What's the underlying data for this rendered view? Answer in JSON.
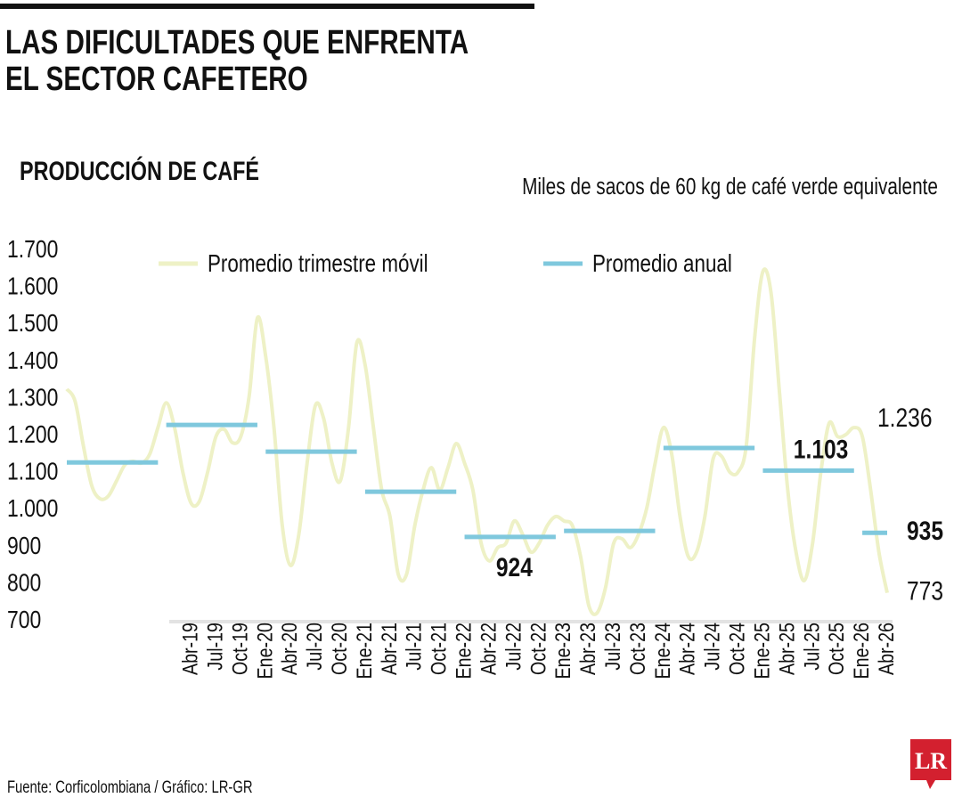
{
  "chart_data": {
    "type": "line",
    "title": [
      "LAS DIFICULTADES QUE ENFRENTA",
      "EL SECTOR CAFETERO"
    ],
    "subtitle": "PRODUCCIÓN DE CAFÉ",
    "y_label": "Miles de sacos de 60 kg de café verde equivalente",
    "source": "Fuente: Corficolombiana / Gráfico: LR-GR",
    "logo": "LR",
    "legend": "top",
    "annotations": [
      "1.236"
    ],
    "ylim": [
      700,
      1700
    ],
    "yticks": [
      {
        "value": 1700,
        "label": "1.700"
      },
      {
        "value": 1600,
        "label": "1.600"
      },
      {
        "value": 1500,
        "label": "1.500"
      },
      {
        "value": 1400,
        "label": "1.400"
      },
      {
        "value": 1300,
        "label": "1.300"
      },
      {
        "value": 1200,
        "label": "1.200"
      },
      {
        "value": 1100,
        "label": "1.100"
      },
      {
        "value": 1000,
        "label": "1.000"
      },
      900,
      800,
      700
    ],
    "categories": [
      null,
      null,
      null,
      null,
      null,
      null,
      null,
      null,
      null,
      null,
      null,
      null,
      null,
      null,
      null,
      "Abr-19",
      null,
      null,
      "Jul-19",
      null,
      null,
      "Oct-19",
      null,
      null,
      "Ene-20",
      null,
      null,
      "Abr-20",
      null,
      null,
      "Jul-20",
      null,
      null,
      "Oct-20",
      null,
      null,
      "Ene-21",
      null,
      null,
      "Abr-21",
      null,
      null,
      "Jul-21",
      null,
      null,
      "Oct-21",
      null,
      null,
      "Ene-22",
      null,
      null,
      "Abr-22",
      null,
      null,
      "Jul-22",
      null,
      null,
      "Oct-22",
      null,
      null,
      "Ene-23",
      null,
      null,
      "Abr-23",
      null,
      null,
      "Jul-23",
      null,
      null,
      "Oct-23",
      null,
      null,
      "Ene-24",
      null,
      null,
      "Abr-24",
      null,
      null,
      "Jul-24",
      null,
      null,
      "Oct-24",
      null,
      null,
      "Ene-25",
      null,
      null,
      "Abr-25",
      null,
      null,
      "Jul-25",
      null,
      null,
      "Oct-25",
      null,
      null,
      "Ene-26",
      null,
      null,
      "Abr-26"
    ],
    "series": [
      {
        "name": "Promedio trimestre móvil",
        "color": "#eef1c6",
        "style": "smooth",
        "values": [
          1323,
          1290,
          1170,
          1063,
          1027,
          1034,
          1075,
          1118,
          1128,
          1123,
          1147,
          1219,
          1286,
          1219,
          1099,
          1015,
          1020,
          1099,
          1195,
          1214,
          1178,
          1195,
          1303,
          1515,
          1411,
          1219,
          955,
          847,
          931,
          1123,
          1279,
          1243,
          1123,
          1075,
          1219,
          1448,
          1388,
          1219,
          1051,
          979,
          823,
          823,
          955,
          1051,
          1111,
          1051,
          1111,
          1176,
          1123,
          1051,
          907,
          859,
          895,
          907,
          967,
          931,
          883,
          907,
          955,
          979,
          967,
          955,
          871,
          738,
          719,
          786,
          907,
          919,
          895,
          931,
          1003,
          1123,
          1219,
          1147,
          979,
          871,
          883,
          979,
          1135,
          1142,
          1099,
          1099,
          1171,
          1460,
          1640,
          1580,
          1315,
          1051,
          883,
          806,
          907,
          1099,
          1231,
          1195,
          1200,
          1219,
          1195,
          1051,
          883,
          773
        ],
        "value_labels": [
          null,
          null,
          null,
          null,
          null,
          null,
          null,
          null,
          null,
          null,
          null,
          null,
          null,
          null,
          null,
          null,
          null,
          null,
          null,
          null,
          null,
          null,
          null,
          null,
          null,
          null,
          null,
          null,
          null,
          null,
          null,
          null,
          null,
          null,
          null,
          null,
          null,
          null,
          null,
          null,
          null,
          null,
          null,
          null,
          null,
          null,
          null,
          null,
          null,
          null,
          null,
          null,
          null,
          null,
          null,
          null,
          null,
          null,
          null,
          null,
          null,
          null,
          null,
          null,
          null,
          null,
          null,
          null,
          null,
          null,
          null,
          null,
          null,
          null,
          null,
          null,
          null,
          null,
          null,
          null,
          null,
          null,
          null,
          null,
          null,
          null,
          null,
          null,
          null,
          null,
          null,
          null,
          null,
          null,
          null,
          null,
          null,
          null,
          null,
          "773"
        ]
      },
      {
        "name": "Promedio anual",
        "color": "#7fc8dd",
        "style": "step",
        "values": [
          1125,
          1125,
          1125,
          1125,
          1125,
          1125,
          1125,
          1125,
          1125,
          1125,
          1125,
          1125,
          1226,
          1226,
          1226,
          1226,
          1226,
          1226,
          1226,
          1226,
          1226,
          1226,
          1226,
          1226,
          1154,
          1154,
          1154,
          1154,
          1154,
          1154,
          1154,
          1154,
          1154,
          1154,
          1154,
          1154,
          1046,
          1046,
          1046,
          1046,
          1046,
          1046,
          1046,
          1046,
          1046,
          1046,
          1046,
          1046,
          924,
          924,
          924,
          924,
          924,
          924,
          924,
          924,
          924,
          924,
          924,
          924,
          940,
          940,
          940,
          940,
          940,
          940,
          940,
          940,
          940,
          940,
          940,
          940,
          1164,
          1164,
          1164,
          1164,
          1164,
          1164,
          1164,
          1164,
          1164,
          1164,
          1164,
          1164,
          1103,
          1103,
          1103,
          1103,
          1103,
          1103,
          1103,
          1103,
          1103,
          1103,
          1103,
          1103,
          935,
          935,
          935,
          935
        ],
        "value_labels": [
          null,
          null,
          null,
          null,
          null,
          null,
          null,
          null,
          null,
          null,
          null,
          null,
          null,
          null,
          null,
          null,
          null,
          null,
          null,
          null,
          null,
          null,
          null,
          null,
          null,
          null,
          null,
          null,
          null,
          null,
          null,
          null,
          null,
          null,
          null,
          null,
          null,
          null,
          null,
          null,
          null,
          null,
          null,
          null,
          null,
          null,
          null,
          null,
          null,
          null,
          null,
          null,
          null,
          null,
          "924",
          null,
          null,
          null,
          null,
          null,
          null,
          null,
          null,
          null,
          null,
          null,
          null,
          null,
          null,
          null,
          null,
          null,
          null,
          null,
          null,
          null,
          null,
          null,
          null,
          null,
          null,
          null,
          null,
          null,
          null,
          null,
          null,
          null,
          null,
          null,
          null,
          "1.103",
          null,
          null,
          null,
          null,
          null,
          null,
          null,
          "935"
        ]
      }
    ]
  }
}
